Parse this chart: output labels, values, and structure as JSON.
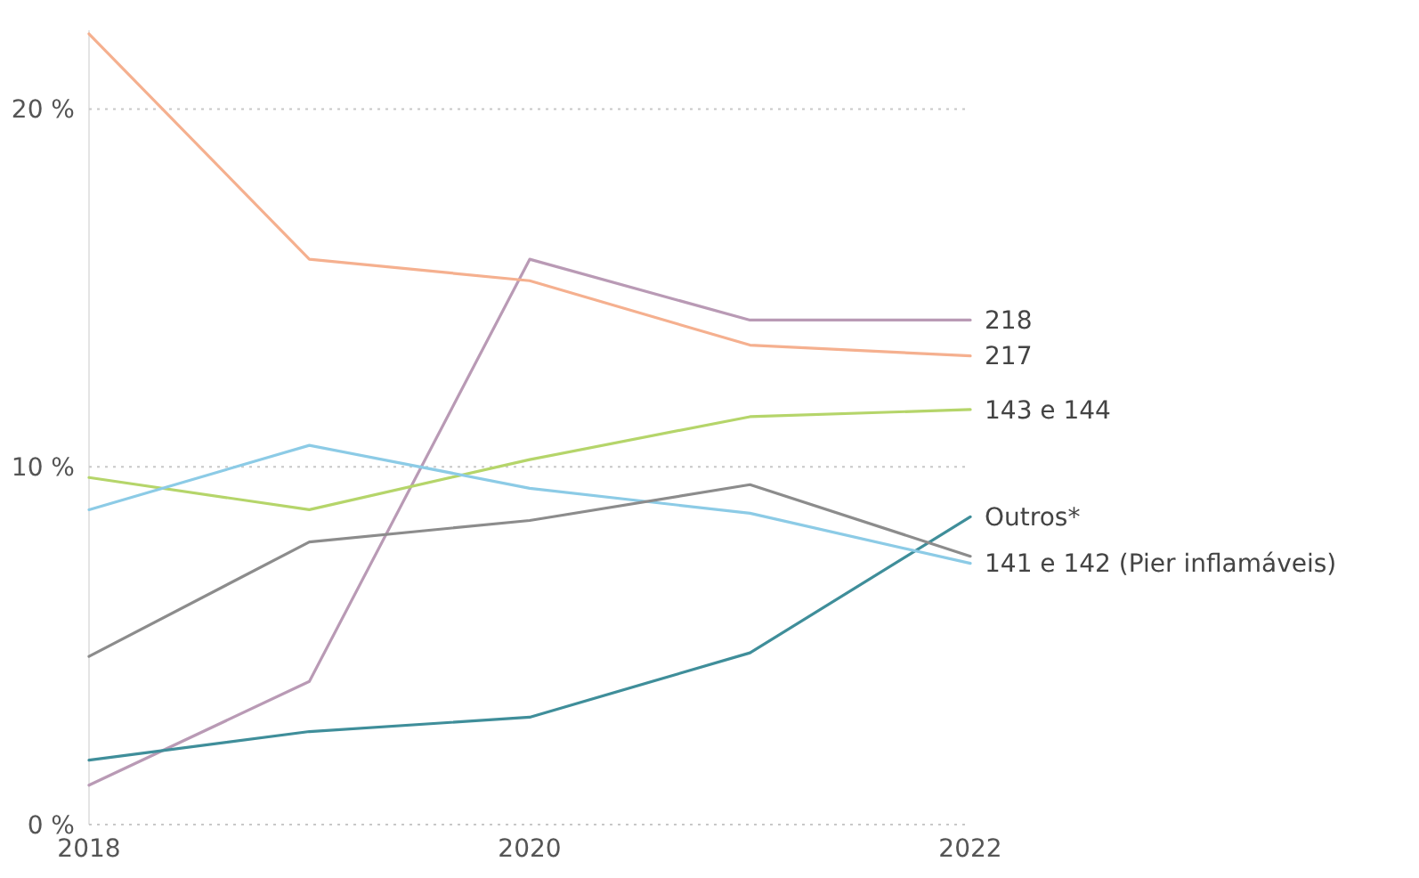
{
  "chart_data": {
    "type": "line",
    "x": [
      2018,
      2019,
      2020,
      2021,
      2022
    ],
    "xlim": [
      2018,
      2022
    ],
    "xticks": [
      2018,
      2020,
      2022
    ],
    "ylim": [
      0,
      22.2
    ],
    "yticks": [
      {
        "value": 0,
        "label": "0 %"
      },
      {
        "value": 10,
        "label": "10 %"
      },
      {
        "value": 20,
        "label": "20 %"
      }
    ],
    "grid": "y",
    "legend": "right",
    "series": [
      {
        "name": "218",
        "color": "#b99ab5",
        "values": [
          1.1,
          4.0,
          15.8,
          14.1,
          14.1
        ]
      },
      {
        "name": "217",
        "color": "#f5b08f",
        "values": [
          22.1,
          15.8,
          15.2,
          13.4,
          13.1
        ]
      },
      {
        "name": "143 e 144",
        "color": "#b5d56a",
        "values": [
          9.7,
          8.8,
          10.2,
          11.4,
          11.6
        ]
      },
      {
        "name": "Outros*",
        "color": "#3f8e9a",
        "values": [
          1.8,
          2.6,
          3.0,
          4.8,
          8.6
        ]
      },
      {
        "name": "141 e 142 (Pier inflamáveis)",
        "color": "#8ccbe6",
        "values": [
          8.8,
          10.6,
          9.4,
          8.7,
          7.3
        ]
      },
      {
        "color": "#8c8c8c",
        "values": [
          4.7,
          7.9,
          8.5,
          9.5,
          7.5
        ]
      }
    ]
  }
}
